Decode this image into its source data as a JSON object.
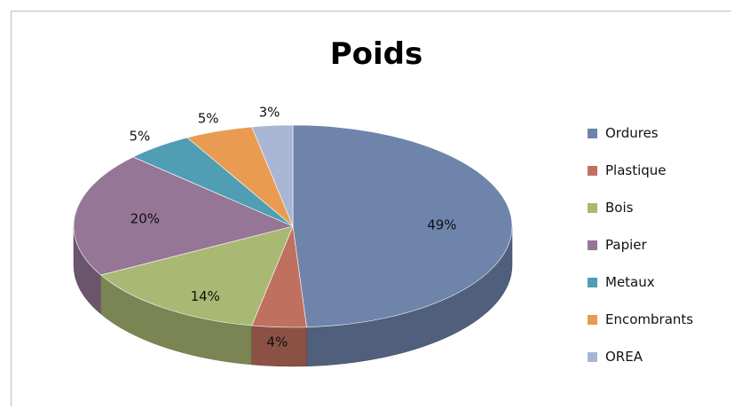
{
  "chart_data": {
    "type": "pie",
    "title": "Poids",
    "categories": [
      "Ordures",
      "Plastique",
      "Bois",
      "Papier",
      "Metaux",
      "Encombrants",
      "OREA"
    ],
    "values": [
      49,
      4,
      14,
      20,
      5,
      5,
      3
    ],
    "labels": [
      "49%",
      "4%",
      "14%",
      "20%",
      "5%",
      "5%",
      "3%"
    ],
    "colors": [
      "#6f84ab",
      "#c0705e",
      "#a9b973",
      "#957697",
      "#4f9eb3",
      "#e99b52",
      "#a8b6d4"
    ],
    "legend_position": "right",
    "style": "3d"
  }
}
